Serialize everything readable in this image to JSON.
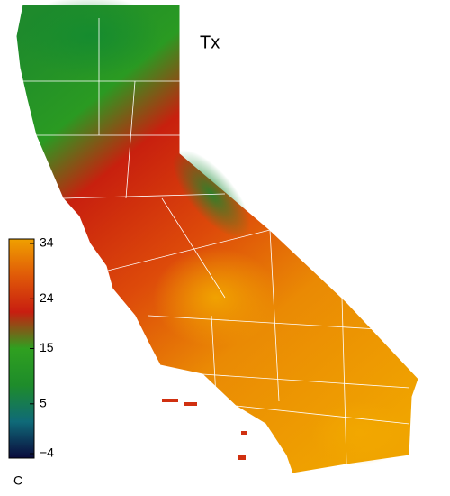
{
  "title": "Tx",
  "colorbar": {
    "label": "C",
    "range": [
      -4,
      34
    ],
    "ticks": [
      {
        "value": -4,
        "label": "−4"
      },
      5,
      15,
      24,
      34
    ],
    "colors": [
      "#0a0a3c",
      "#0f6a78",
      "#1e8c2a",
      "#2fa020",
      "#c81e10",
      "#e05a08",
      "#f0a000"
    ]
  }
}
